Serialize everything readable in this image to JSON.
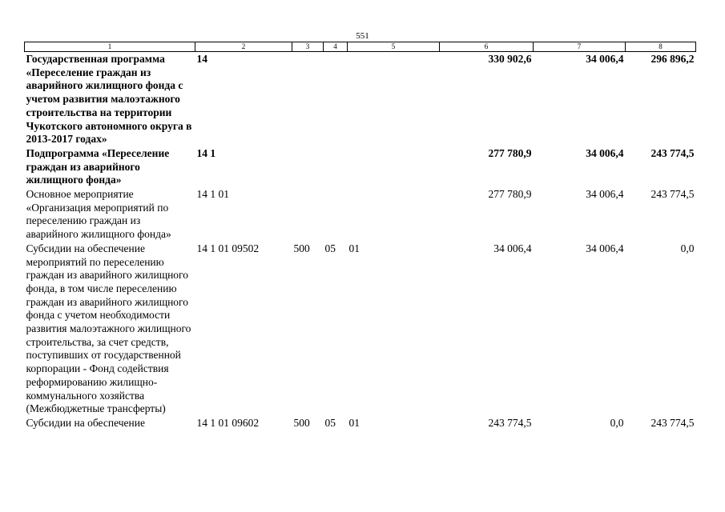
{
  "page_number": "551",
  "header": [
    "1",
    "2",
    "3",
    "4",
    "5",
    "6",
    "7",
    "8"
  ],
  "rows": [
    {
      "name": "Государственная программа «Переселение граждан из аварийного жилищного фонда с учетом развития малоэтажного строительства на территории Чукотского автономного округа в 2013-2017 годах»",
      "code": "14",
      "c3": "",
      "c4": "",
      "c5": "",
      "v6": "330 902,6",
      "v7": "34 006,4",
      "v8": "296 896,2",
      "bold": true
    },
    {
      "name": "Подпрограмма «Переселение граждан из аварийного жилищного фонда»",
      "code": "14 1",
      "c3": "",
      "c4": "",
      "c5": "",
      "v6": "277 780,9",
      "v7": "34 006,4",
      "v8": "243 774,5",
      "bold": true
    },
    {
      "name": "Основное мероприятие «Организация мероприятий по переселению граждан из аварийного жилищного фонда»",
      "code": "14 1 01",
      "c3": "",
      "c4": "",
      "c5": "",
      "v6": "277 780,9",
      "v7": "34 006,4",
      "v8": "243 774,5",
      "bold": false
    },
    {
      "name": "Субсидии на обеспечение мероприятий по переселению граждан из аварийного жилищного фонда, в том числе переселению граждан из аварийного жилищного фонда с учетом необходимости развития малоэтажного жилищного строительства, за счет средств, поступивших от государственной корпорации - Фонд содействия реформированию жилищно-коммунального хозяйства (Межбюджетные трансферты)",
      "code": "14 1 01 09502",
      "c3": "500",
      "c4": "05",
      "c5": "01",
      "v6": "34 006,4",
      "v7": "34 006,4",
      "v8": "0,0",
      "bold": false
    },
    {
      "name": "Субсидии на обеспечение",
      "code": "14 1 01 09602",
      "c3": "500",
      "c4": "05",
      "c5": "01",
      "v6": "243 774,5",
      "v7": "0,0",
      "v8": "243 774,5",
      "bold": false
    }
  ]
}
